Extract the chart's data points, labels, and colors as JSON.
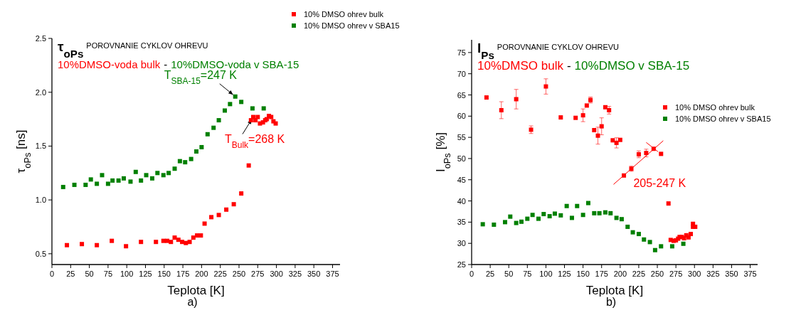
{
  "chart_data": [
    {
      "type": "scatter",
      "title": "τ$_{oPs}$",
      "subtitle": "POROVNANIE CYKLOV OHREVU",
      "xlabel": "Teplota [K]",
      "ylabel": "τ$_{oPs}$ [ns]",
      "xlim": [
        0,
        385
      ],
      "xticks": [
        0,
        25,
        50,
        75,
        100,
        125,
        150,
        175,
        200,
        225,
        250,
        275,
        300,
        325,
        350,
        375
      ],
      "ylim": [
        0.4,
        2.5
      ],
      "yticks": [
        {
          "value": 0.5,
          "label": "0.5"
        },
        {
          "value": 1,
          "label": "1.0"
        },
        {
          "value": 1.5,
          "label": "1.5"
        },
        {
          "value": 2,
          "label": "2.0"
        },
        {
          "value": 2.5,
          "label": "2.5"
        }
      ],
      "grid": false,
      "legend": "top",
      "marker": "square",
      "annotations": [
        "10%DMSO-voda bulk",
        "-",
        "10%DMSO-voda v SBA-15",
        {
          "text": "T$_{SBA-15}$=247 K",
          "x": 245,
          "y": 1.96
        },
        {
          "text": "T$_{Bulk}$=268 K",
          "x": 269,
          "y": 1.77
        },
        "a)"
      ],
      "series": [
        {
          "name": "10% DMSO ohrev bulk",
          "color": "#ff0000",
          "x": [
            20,
            40,
            60,
            80,
            99,
            119,
            139,
            149,
            154,
            159,
            164,
            169,
            174,
            179,
            184,
            189,
            194,
            199,
            204,
            213,
            223,
            233,
            243,
            253,
            263,
            266,
            269,
            272,
            275,
            278,
            282,
            285,
            287,
            290,
            293,
            296,
            299
          ],
          "values": [
            0.58,
            0.59,
            0.58,
            0.62,
            0.57,
            0.61,
            0.61,
            0.62,
            0.62,
            0.61,
            0.65,
            0.63,
            0.61,
            0.6,
            0.61,
            0.65,
            0.67,
            0.67,
            0.78,
            0.84,
            0.86,
            0.91,
            0.96,
            1.06,
            1.32,
            1.74,
            1.77,
            1.74,
            1.77,
            1.71,
            1.72,
            1.74,
            1.75,
            1.78,
            1.77,
            1.73,
            1.71
          ]
        },
        {
          "name": "10% DMSO ohrev v SBA15",
          "color": "#008000",
          "x": [
            15,
            30,
            45,
            52,
            60,
            67,
            75,
            81,
            89,
            96,
            105,
            112,
            119,
            126,
            134,
            141,
            149,
            156,
            164,
            171,
            178,
            186,
            193,
            200,
            208,
            216,
            223,
            231,
            238,
            245,
            253,
            268,
            283
          ],
          "values": [
            1.12,
            1.14,
            1.14,
            1.19,
            1.15,
            1.23,
            1.15,
            1.18,
            1.18,
            1.2,
            1.17,
            1.26,
            1.18,
            1.23,
            1.2,
            1.25,
            1.23,
            1.25,
            1.29,
            1.36,
            1.35,
            1.38,
            1.45,
            1.49,
            1.61,
            1.67,
            1.74,
            1.83,
            1.89,
            1.96,
            1.91,
            1.85,
            1.85
          ]
        }
      ]
    },
    {
      "type": "scatter",
      "title": "I$_{Ps}$",
      "subtitle": "POROVNANIE CYKLOV OHREVU",
      "xlabel": "Teplota [K]",
      "ylabel": "I$_{oPs}$ [%]",
      "xlim": [
        0,
        385
      ],
      "xticks": [
        0,
        25,
        50,
        75,
        100,
        125,
        150,
        175,
        200,
        225,
        250,
        275,
        300,
        325,
        350,
        375
      ],
      "ylim": [
        25,
        78
      ],
      "yticks": [
        25,
        30,
        35,
        40,
        45,
        50,
        55,
        60,
        65,
        70,
        75
      ],
      "grid": false,
      "legend": "right",
      "marker": "square",
      "annotations": [
        "10%DMSO bulk",
        "-",
        "10%DMSO v SBA-15",
        "205-247 K",
        "b)"
      ],
      "series": [
        {
          "name": "10% DMSO ohrev bulk",
          "color": "#ff0000",
          "x": [
            20,
            40,
            60,
            80,
            100,
            120,
            140,
            150,
            155,
            160,
            165,
            170,
            175,
            180,
            185,
            190,
            195,
            200,
            205,
            215,
            225,
            235,
            245,
            255,
            265,
            268,
            272,
            275,
            278,
            280,
            283,
            286,
            289,
            292,
            295,
            298,
            298,
            301
          ],
          "values": [
            64.4,
            61.4,
            64,
            56.8,
            67,
            59.7,
            59.6,
            60.2,
            62.5,
            63.8,
            56.7,
            55.4,
            57.6,
            62.1,
            61.4,
            54.3,
            53.7,
            54.4,
            46,
            47.6,
            51,
            51.3,
            52.3,
            51.1,
            39.4,
            30.8,
            30.6,
            30.7,
            31.1,
            31.5,
            31.5,
            31.2,
            31.9,
            31.4,
            32.2,
            34.6,
            33.9,
            33.9
          ],
          "errors": [
            null,
            2,
            2.3,
            0.9,
            1.8,
            null,
            null,
            1.5,
            null,
            0.7,
            null,
            2,
            2,
            null,
            0.9,
            null,
            1.2,
            null,
            null,
            0.6,
            0.8,
            0.9,
            null,
            null,
            null,
            null,
            null,
            null,
            null,
            null,
            null,
            null,
            null,
            null,
            null,
            null,
            null,
            null
          ]
        },
        {
          "name": "10% DMSO ohrev v SBA15",
          "color": "#008000",
          "x": [
            15,
            30,
            45,
            52,
            60,
            67,
            75,
            82,
            90,
            97,
            105,
            112,
            120,
            128,
            135,
            142,
            150,
            157,
            165,
            172,
            180,
            187,
            195,
            202,
            210,
            217,
            225,
            232,
            240,
            247,
            255,
            270,
            285
          ],
          "values": [
            34.5,
            34.4,
            35,
            36.3,
            34.8,
            35.1,
            35.8,
            36.7,
            35.8,
            36.9,
            36.4,
            37,
            36.6,
            38.8,
            36,
            38.8,
            36.7,
            39.5,
            37.1,
            37.1,
            37.3,
            37.1,
            36,
            35.7,
            33.9,
            32.6,
            32.2,
            30.9,
            30.3,
            28.4,
            29.3,
            29.3,
            29.9
          ]
        },
        {
          "type": "line",
          "color": "#ff0000",
          "marker": "none",
          "x": [
            191,
            258
          ],
          "values": [
            43.9,
            54.2
          ]
        },
        {
          "type": "line",
          "color": "#ff0000",
          "marker": "none",
          "x": [
            235,
            251
          ],
          "values": [
            53.8,
            51.6
          ]
        }
      ]
    }
  ]
}
